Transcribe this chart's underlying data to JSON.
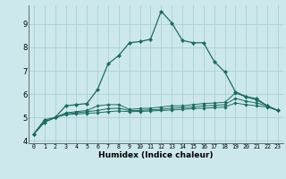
{
  "xlabel": "Humidex (Indice chaleur)",
  "xlim": [
    -0.5,
    23.5
  ],
  "ylim": [
    3.9,
    9.8
  ],
  "bg_color": "#cce8ec",
  "grid_color": "#aacfd6",
  "line_color": "#1a6b60",
  "series": [
    [
      4.3,
      4.9,
      5.0,
      5.5,
      5.55,
      5.6,
      6.2,
      7.3,
      7.65,
      8.2,
      8.25,
      8.35,
      9.55,
      9.05,
      8.3,
      8.2,
      8.2,
      7.4,
      6.95,
      6.1,
      5.9,
      5.8,
      5.5,
      5.3
    ],
    [
      4.3,
      4.8,
      5.0,
      5.2,
      5.25,
      5.3,
      5.5,
      5.55,
      5.55,
      5.35,
      5.38,
      5.4,
      5.45,
      5.5,
      5.5,
      5.55,
      5.6,
      5.62,
      5.65,
      6.05,
      5.88,
      5.75,
      5.5,
      5.3
    ],
    [
      4.3,
      4.8,
      5.0,
      5.15,
      5.2,
      5.25,
      5.3,
      5.38,
      5.4,
      5.3,
      5.3,
      5.33,
      5.35,
      5.4,
      5.42,
      5.45,
      5.5,
      5.52,
      5.55,
      5.82,
      5.7,
      5.62,
      5.5,
      5.3
    ],
    [
      4.3,
      4.8,
      5.0,
      5.12,
      5.15,
      5.18,
      5.2,
      5.25,
      5.28,
      5.25,
      5.26,
      5.28,
      5.3,
      5.32,
      5.35,
      5.38,
      5.4,
      5.42,
      5.45,
      5.62,
      5.55,
      5.5,
      5.45,
      5.3
    ]
  ],
  "yticks": [
    4,
    5,
    6,
    7,
    8,
    9
  ],
  "xticks": [
    0,
    1,
    2,
    3,
    4,
    5,
    6,
    7,
    8,
    9,
    10,
    11,
    12,
    13,
    14,
    15,
    16,
    17,
    18,
    19,
    20,
    21,
    22,
    23
  ]
}
